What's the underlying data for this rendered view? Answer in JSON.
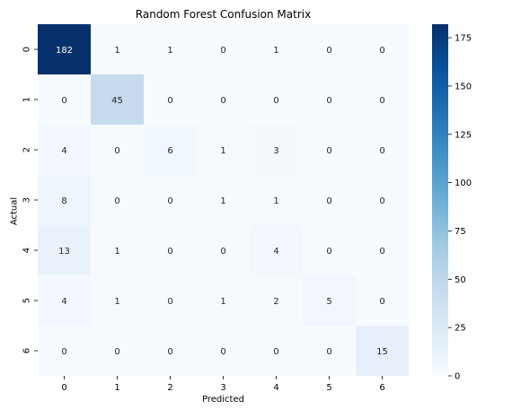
{
  "chart_data": {
    "type": "heatmap",
    "title": "Random Forest Confusion Matrix",
    "xlabel": "Predicted",
    "ylabel": "Actual",
    "x_categories": [
      "0",
      "1",
      "2",
      "3",
      "4",
      "5",
      "6"
    ],
    "y_categories": [
      "0",
      "1",
      "2",
      "3",
      "4",
      "5",
      "6"
    ],
    "values": [
      [
        182,
        1,
        1,
        0,
        1,
        0,
        0
      ],
      [
        0,
        45,
        0,
        0,
        0,
        0,
        0
      ],
      [
        4,
        0,
        6,
        1,
        3,
        0,
        0
      ],
      [
        8,
        0,
        0,
        1,
        1,
        0,
        0
      ],
      [
        13,
        1,
        0,
        0,
        4,
        0,
        0
      ],
      [
        4,
        1,
        0,
        1,
        2,
        5,
        0
      ],
      [
        0,
        0,
        0,
        0,
        0,
        0,
        15
      ]
    ],
    "colorscale": "Blues",
    "vmin": 0,
    "vmax": 182,
    "colorbar_ticks": [
      "0",
      "25",
      "50",
      "75",
      "100",
      "125",
      "150",
      "175"
    ]
  }
}
